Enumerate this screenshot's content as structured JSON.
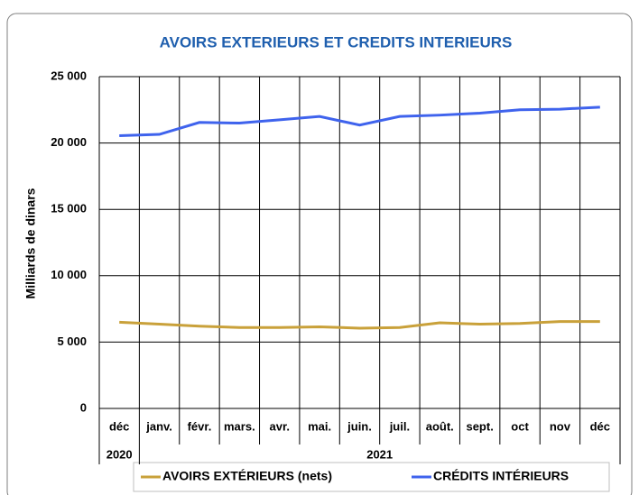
{
  "chart_data": {
    "type": "line",
    "title": "AVOIRS EXTERIEURS ET CREDITS INTERIEURS",
    "y_label": "Milliards de dinars",
    "categories": [
      "déc",
      "janv.",
      "févr.",
      "mars.",
      "avr.",
      "mai.",
      "juin.",
      "juil.",
      "août.",
      "sept.",
      "oct",
      "nov",
      "déc"
    ],
    "years": [
      "2020",
      "2021"
    ],
    "series": [
      {
        "name": "AVOIRS EXTÉRIEURS (nets)",
        "color": "#c9a13a",
        "values": [
          6500,
          6350,
          6200,
          6100,
          6100,
          6150,
          6050,
          6100,
          6450,
          6350,
          6400,
          6550,
          6550
        ]
      },
      {
        "name": "CRÉDITS INTÉRIEURS",
        "color": "#3f63ed",
        "values": [
          20550,
          20650,
          21550,
          21500,
          21750,
          22000,
          21350,
          22000,
          22100,
          22250,
          22500,
          22550,
          22700
        ]
      }
    ],
    "ylim": [
      0,
      25000
    ],
    "yticks": [
      0,
      {
        "value": 5000,
        "label": "5 000"
      },
      {
        "value": 10000,
        "label": "10 000"
      },
      {
        "value": 15000,
        "label": "15 000"
      },
      {
        "value": 20000,
        "label": "20 000"
      },
      {
        "value": 25000,
        "label": "25 000"
      }
    ],
    "grid": true,
    "legend": "bottom"
  }
}
